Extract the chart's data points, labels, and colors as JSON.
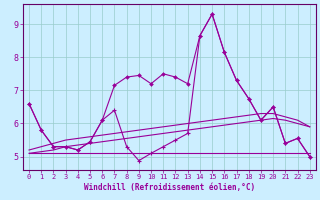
{
  "xlabel": "Windchill (Refroidissement éolien,°C)",
  "bg_color": "#cceeff",
  "line_color": "#990099",
  "grid_color": "#99cccc",
  "axis_color": "#660066",
  "xlim": [
    -0.5,
    23.5
  ],
  "ylim": [
    4.6,
    9.6
  ],
  "xticks": [
    0,
    1,
    2,
    3,
    4,
    5,
    6,
    7,
    8,
    9,
    10,
    11,
    12,
    13,
    14,
    15,
    16,
    17,
    18,
    19,
    20,
    21,
    22,
    23
  ],
  "yticks": [
    5,
    6,
    7,
    8,
    9
  ],
  "series_main": [
    6.6,
    5.8,
    5.3,
    5.3,
    5.2,
    5.45,
    6.1,
    7.15,
    7.4,
    7.45,
    7.2,
    7.5,
    7.4,
    7.2,
    8.65,
    9.3,
    8.15,
    7.3,
    6.75,
    6.1,
    6.5,
    5.4,
    5.55,
    5.0
  ],
  "series_cross": [
    6.6,
    5.8,
    5.3,
    5.3,
    5.2,
    5.45,
    6.1,
    6.4,
    5.3,
    4.88,
    5.1,
    5.3,
    5.5,
    5.7,
    8.65,
    9.3,
    8.15,
    7.3,
    6.75,
    6.1,
    6.5,
    5.4,
    5.55,
    5.0
  ],
  "series_flat": [
    5.1,
    5.1,
    5.1,
    5.1,
    5.1,
    5.1,
    5.1,
    5.1,
    5.1,
    5.1,
    5.1,
    5.1,
    5.1,
    5.1,
    5.1,
    5.1,
    5.1,
    5.1,
    5.1,
    5.1,
    5.1,
    5.1,
    5.1,
    5.1
  ],
  "series_rise1": [
    5.1,
    5.15,
    5.2,
    5.3,
    5.35,
    5.4,
    5.45,
    5.5,
    5.55,
    5.6,
    5.65,
    5.7,
    5.75,
    5.8,
    5.85,
    5.9,
    5.95,
    6.0,
    6.05,
    6.1,
    6.15,
    6.1,
    6.0,
    5.9
  ],
  "series_rise2": [
    5.2,
    5.3,
    5.4,
    5.5,
    5.55,
    5.6,
    5.65,
    5.7,
    5.75,
    5.8,
    5.85,
    5.9,
    5.95,
    6.0,
    6.05,
    6.1,
    6.15,
    6.2,
    6.25,
    6.3,
    6.3,
    6.2,
    6.1,
    5.9
  ]
}
